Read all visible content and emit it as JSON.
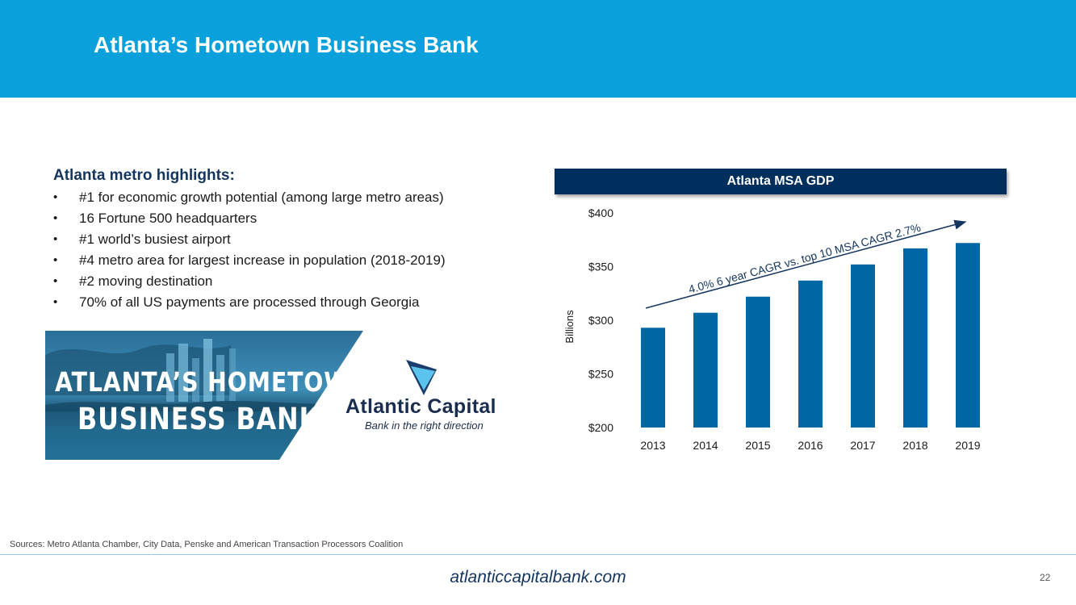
{
  "header": {
    "title": "Atlanta’s Hometown Business Bank"
  },
  "highlights": {
    "title": "Atlanta metro highlights:",
    "bullet_symbol": "•",
    "items": [
      "#1 for economic growth potential (among large metro areas)",
      "16 Fortune 500 headquarters",
      "#1 world’s busiest airport",
      "#4 metro area for largest increase in population (2018-2019)",
      "#2 moving destination",
      "70% of all US payments are processed through Georgia"
    ]
  },
  "banner": {
    "line1": "ATLANTA’S HOMETOWN",
    "line2": "BUSINESS BANK"
  },
  "logo": {
    "name": "Atlantic Capital",
    "tagline": "Bank in the right direction",
    "colors": {
      "mark_light": "#5bc3ec",
      "mark_dark": "#1a3d6e"
    }
  },
  "chart_header": {
    "title": "Atlanta MSA GDP"
  },
  "chart_data": {
    "type": "bar",
    "categories": [
      "2013",
      "2014",
      "2015",
      "2016",
      "2017",
      "2018",
      "2019"
    ],
    "values": [
      293,
      307,
      322,
      337,
      352,
      367,
      372
    ],
    "ylim": [
      200,
      400
    ],
    "yticks": [
      200,
      250,
      300,
      350,
      400
    ],
    "ytick_labels": [
      "$200",
      "$250",
      "$300",
      "$350",
      "$400"
    ],
    "ylabel": "Billions",
    "xlabel": "",
    "annotation": "4.0% 6 year CAGR vs. top 10 MSA CAGR 2.7%",
    "bar_color": "#0067a5",
    "grid": false,
    "legend": "none"
  },
  "footer": {
    "sources": "Sources: Metro Atlanta Chamber, City Data, Penske and American Transaction Processors Coalition",
    "url": "atlanticcapitalbank.com",
    "page": "22"
  }
}
